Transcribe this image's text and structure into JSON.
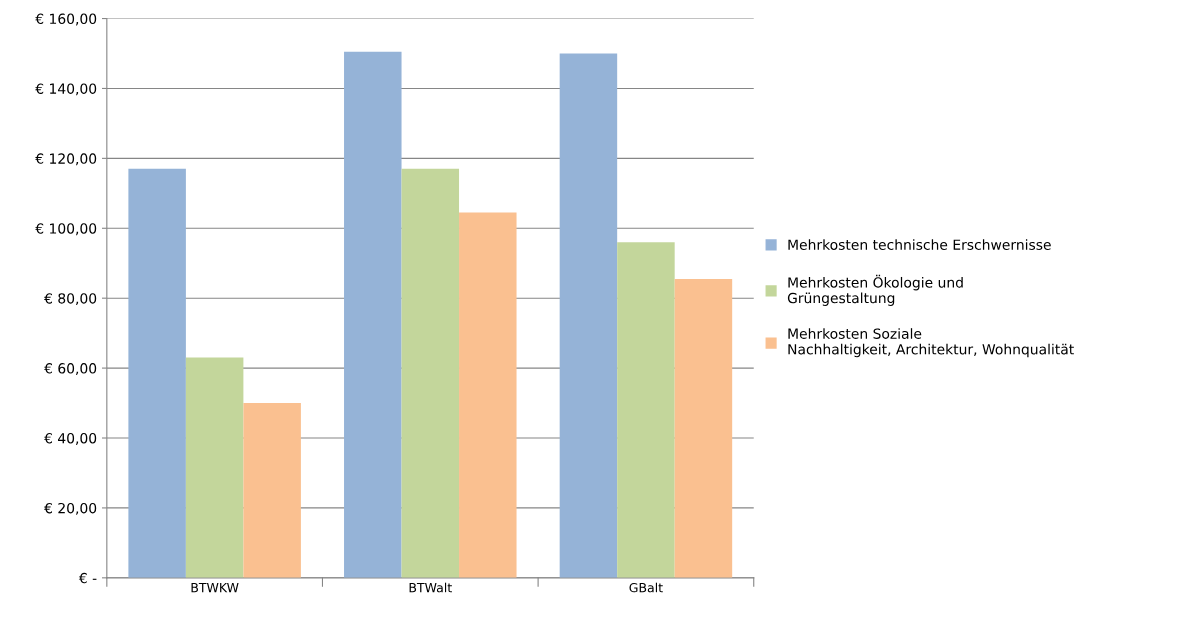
{
  "chart_data": {
    "type": "bar",
    "categories": [
      "BTWKW",
      "BTWalt",
      "GBalt"
    ],
    "series": [
      {
        "name": "Mehrkosten technische Erschwernisse",
        "color": "#95b3d7",
        "values": [
          117,
          150.5,
          150
        ]
      },
      {
        "name": "Mehrkosten Ökologie und\nGrüngestaltung",
        "color": "#c3d69b",
        "values": [
          63,
          117,
          96
        ]
      },
      {
        "name": "Mehrkosten Soziale\nNachhaltigkeit, Architektur, Wohnqualität",
        "color": "#fac090",
        "values": [
          50,
          104.5,
          85.5
        ]
      }
    ],
    "ylim": [
      0,
      160
    ],
    "yticks": [
      {
        "value": 0,
        "label": "€ -"
      },
      {
        "value": 20,
        "label": "€ 20,00"
      },
      {
        "value": 40,
        "label": "€ 40,00"
      },
      {
        "value": 60,
        "label": "€ 60,00"
      },
      {
        "value": 80,
        "label": "€ 80,00"
      },
      {
        "value": 100,
        "label": "€ 100,00"
      },
      {
        "value": 120,
        "label": "€ 120,00"
      },
      {
        "value": 140,
        "label": "€ 140,00"
      },
      {
        "value": 160,
        "label": "€ 160,00"
      }
    ],
    "grid": "y",
    "legend": "right"
  }
}
